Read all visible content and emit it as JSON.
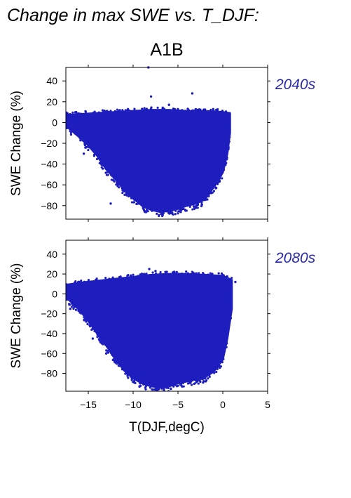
{
  "figure": {
    "title": "Change in max SWE vs. T_DJF:",
    "subtitle": "A1B"
  },
  "colors": {
    "points": "#1e1ebe",
    "period_label": "#2a2aa8",
    "axes": "#000000"
  },
  "chart_data": [
    {
      "type": "scatter",
      "panel_label": "2040s",
      "xlabel": "",
      "ylabel": "SWE Change (%)",
      "xlim": [
        -17.5,
        5
      ],
      "ylim": [
        -93,
        53
      ],
      "yticks": [
        40,
        20,
        0,
        -20,
        -40,
        -60,
        -80
      ],
      "grid": false,
      "envelope_upper": [
        [
          -17.5,
          7
        ],
        [
          -16,
          8
        ],
        [
          -14,
          9
        ],
        [
          -12,
          10
        ],
        [
          -10,
          11
        ],
        [
          -8,
          12
        ],
        [
          -6,
          12
        ],
        [
          -4,
          11
        ],
        [
          -2,
          11
        ],
        [
          0,
          10
        ],
        [
          0.8,
          9
        ]
      ],
      "envelope_lower": [
        [
          -17.5,
          -3
        ],
        [
          -16,
          -14
        ],
        [
          -15,
          -22
        ],
        [
          -14,
          -32
        ],
        [
          -13,
          -45
        ],
        [
          -12,
          -54
        ],
        [
          -11,
          -65
        ],
        [
          -10,
          -73
        ],
        [
          -9,
          -80
        ],
        [
          -8,
          -84
        ],
        [
          -7,
          -86
        ],
        [
          -6,
          -85
        ],
        [
          -5,
          -83
        ],
        [
          -4,
          -80
        ],
        [
          -3,
          -78
        ],
        [
          -2,
          -74
        ],
        [
          -1,
          -62
        ],
        [
          0,
          -48
        ],
        [
          0.5,
          -30
        ],
        [
          0.8,
          -10
        ]
      ],
      "outliers": [
        [
          -8.3,
          53
        ],
        [
          -3.4,
          28
        ],
        [
          -8.0,
          25
        ],
        [
          -6.0,
          17
        ],
        [
          -17.2,
          -4
        ],
        [
          -15.5,
          -30
        ],
        [
          -12.5,
          -78
        ],
        [
          -11.5,
          -50
        ]
      ]
    },
    {
      "type": "scatter",
      "panel_label": "2080s",
      "xlabel": "T(DJF,degC)",
      "ylabel": "SWE Change (%)",
      "xlim": [
        -17.5,
        5
      ],
      "xticks": [
        -15,
        -10,
        -5,
        0,
        5
      ],
      "ylim": [
        -98,
        54
      ],
      "yticks": [
        40,
        20,
        0,
        -20,
        -40,
        -60,
        -80
      ],
      "grid": false,
      "envelope_upper": [
        [
          -17.5,
          9
        ],
        [
          -16,
          11
        ],
        [
          -14,
          13
        ],
        [
          -12,
          15
        ],
        [
          -10,
          17
        ],
        [
          -8,
          19
        ],
        [
          -6,
          20
        ],
        [
          -4,
          20
        ],
        [
          -2,
          19
        ],
        [
          0,
          18
        ],
        [
          1,
          14
        ]
      ],
      "envelope_lower": [
        [
          -17.5,
          -3
        ],
        [
          -16,
          -16
        ],
        [
          -15,
          -27
        ],
        [
          -14,
          -40
        ],
        [
          -13,
          -52
        ],
        [
          -12,
          -65
        ],
        [
          -11,
          -77
        ],
        [
          -10,
          -85
        ],
        [
          -9,
          -90
        ],
        [
          -8,
          -93
        ],
        [
          -7,
          -94
        ],
        [
          -6,
          -93
        ],
        [
          -5,
          -90
        ],
        [
          -4,
          -88
        ],
        [
          -3,
          -86
        ],
        [
          -2,
          -84
        ],
        [
          -1,
          -78
        ],
        [
          0,
          -66
        ],
        [
          0.5,
          -45
        ],
        [
          1,
          -15
        ]
      ],
      "outliers": [
        [
          -8.2,
          25
        ],
        [
          -7.5,
          23
        ],
        [
          -17.0,
          -15
        ],
        [
          -14.5,
          -45
        ],
        [
          -13.0,
          -60
        ],
        [
          1.4,
          12
        ]
      ]
    }
  ]
}
